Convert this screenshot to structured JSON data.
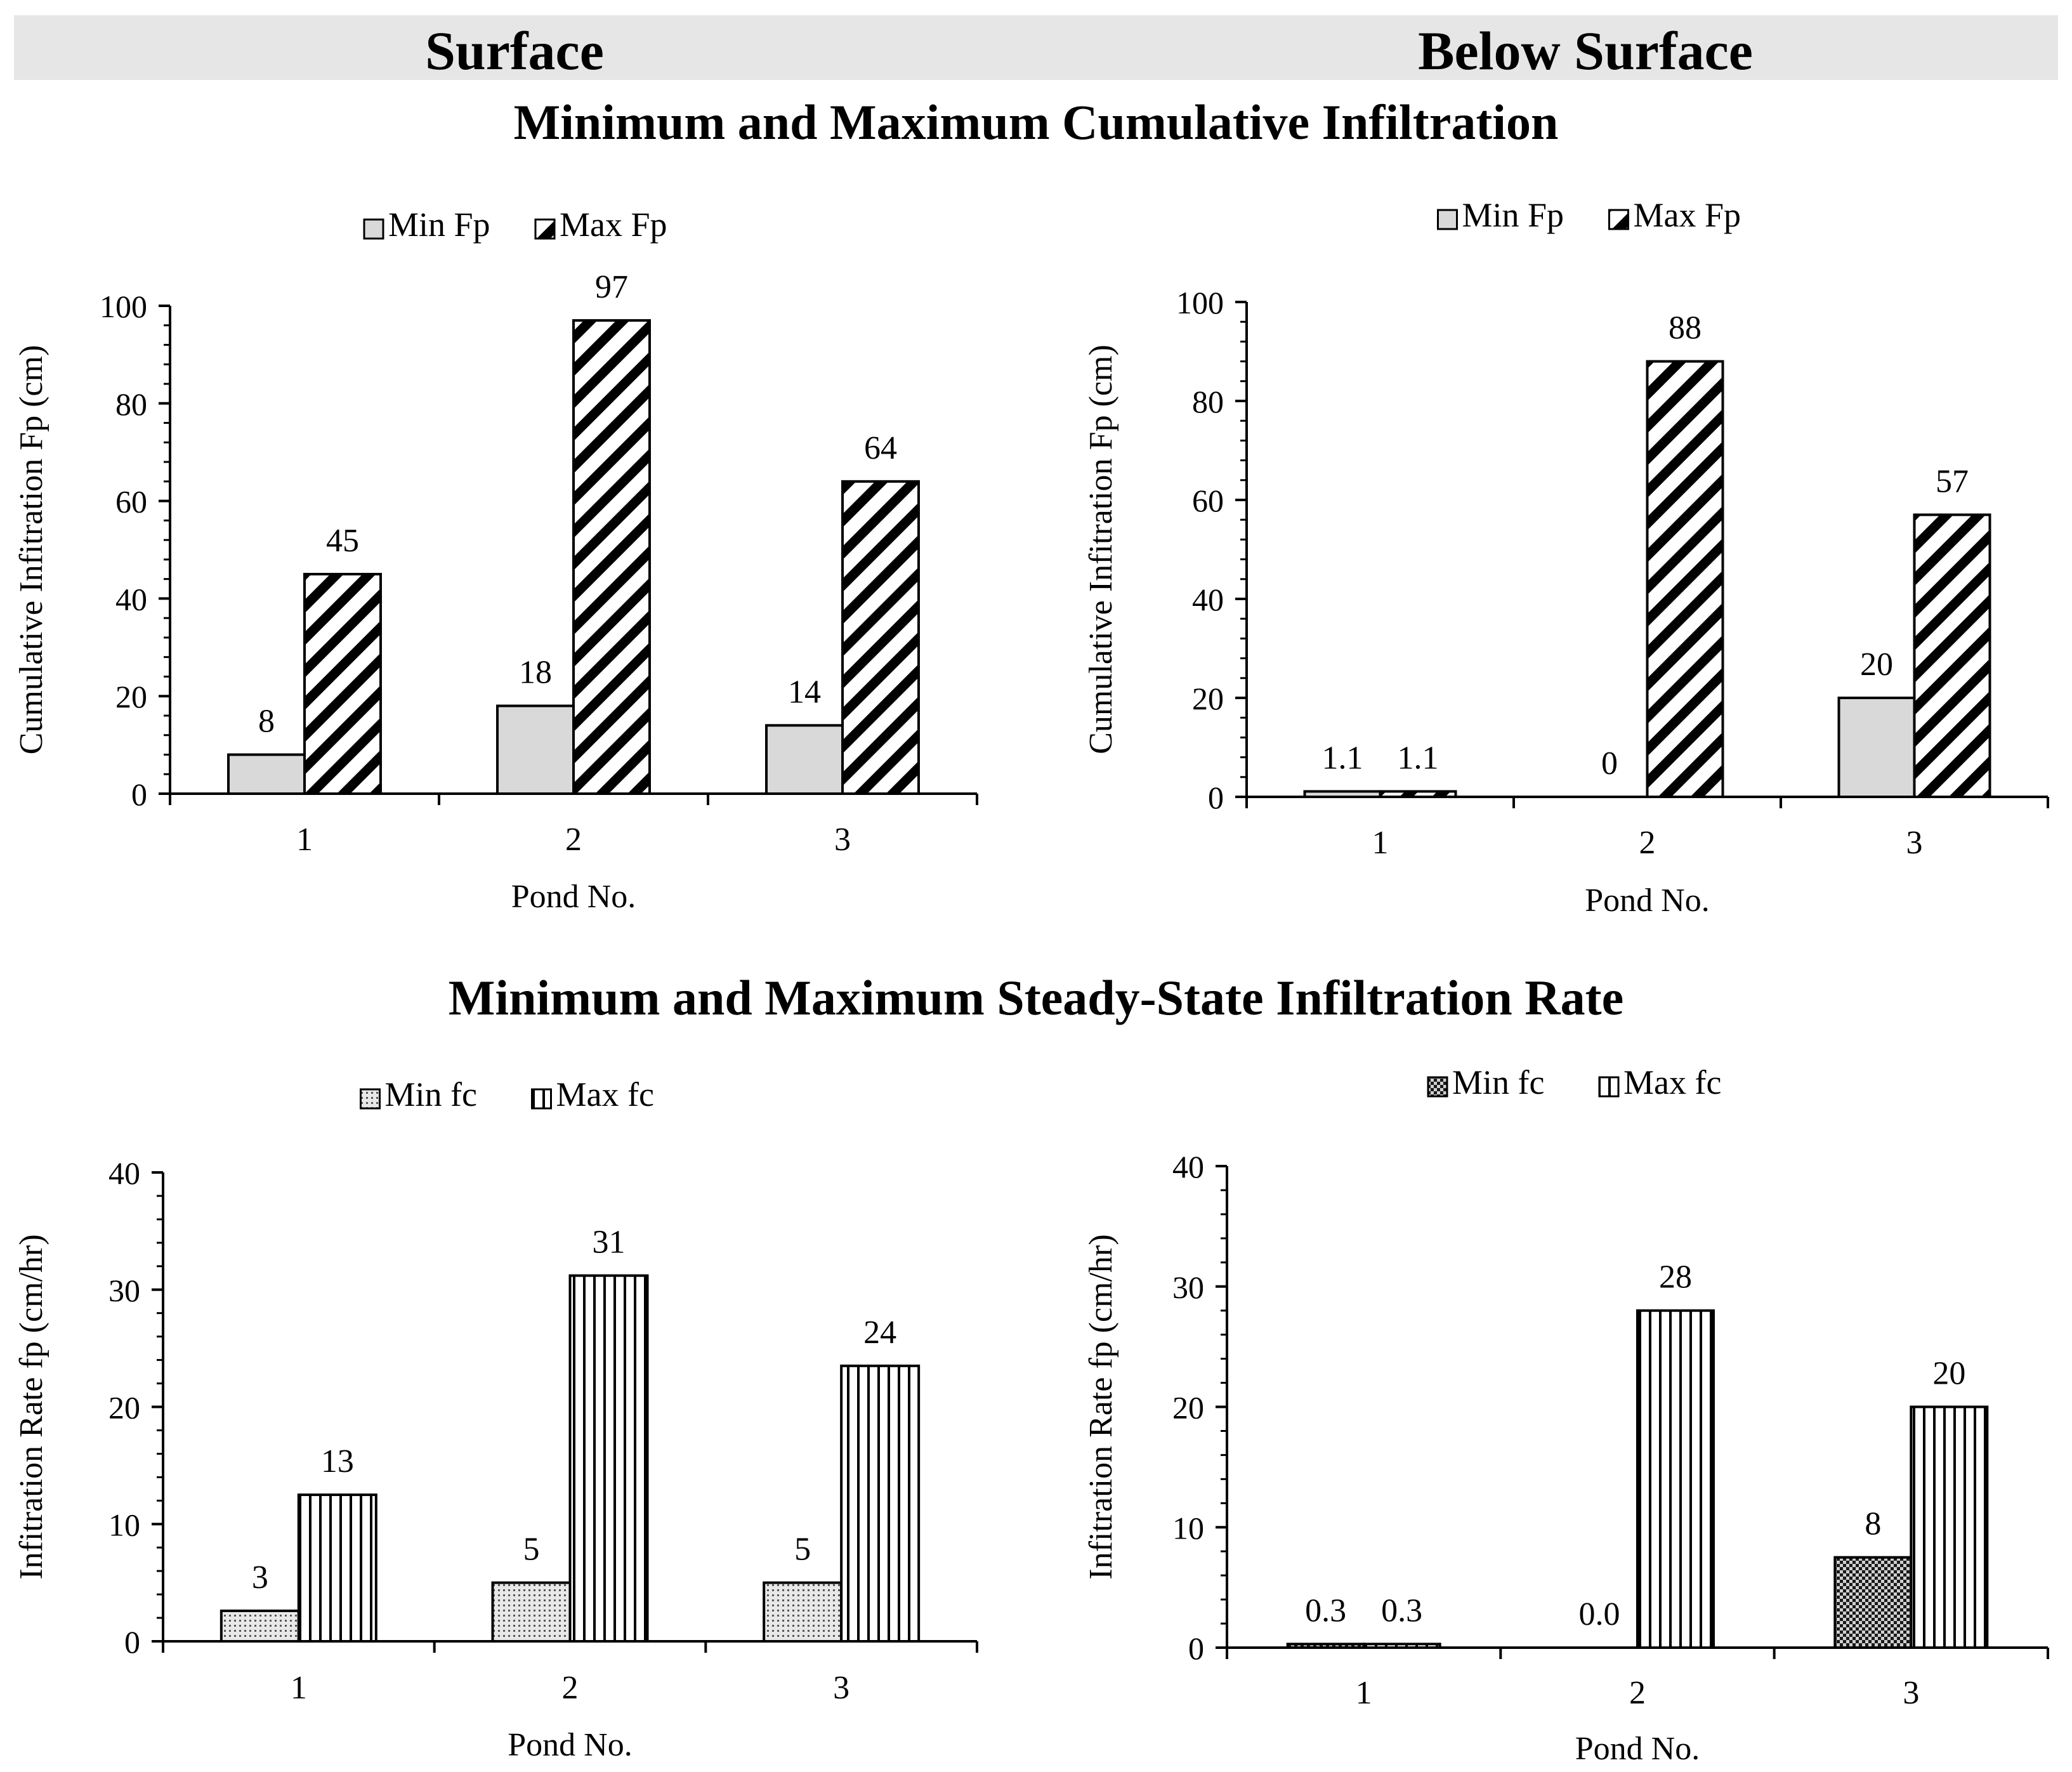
{
  "header": {
    "left": "Surface",
    "right": "Below Surface"
  },
  "sections": {
    "top_title": "Minimum and Maximum Cumulative Infiltration",
    "bottom_title": "Minimum and Maximum Steady-State Infiltration Rate"
  },
  "colors": {
    "header_band": "#e6e6e6",
    "min_fill": "#d9d9d9",
    "bar_stroke": "#000000",
    "hatch": "#000000"
  },
  "chart_data": [
    {
      "id": "surface-cumulative",
      "type": "bar",
      "panel": "Surface",
      "categories": [
        "1",
        "2",
        "3"
      ],
      "series": [
        {
          "name": "Min Fp",
          "pattern": "solid-gray",
          "values": [
            8,
            18,
            14
          ],
          "labels": [
            "8",
            "18",
            "14"
          ]
        },
        {
          "name": "Max Fp",
          "pattern": "diagonal",
          "values": [
            45,
            97,
            64
          ],
          "labels": [
            "45",
            "97",
            "64"
          ]
        }
      ],
      "xlabel": "Pond No.",
      "ylabel": "Cumulative Infitration Fp (cm)",
      "ylim": [
        0,
        100
      ],
      "yticks": [
        0,
        20,
        40,
        60,
        80,
        100
      ],
      "legend": "top-center",
      "grid": false
    },
    {
      "id": "below-cumulative",
      "type": "bar",
      "panel": "Below Surface",
      "categories": [
        "1",
        "2",
        "3"
      ],
      "series": [
        {
          "name": "Min Fp",
          "pattern": "solid-gray",
          "values": [
            1.1,
            0,
            20
          ],
          "labels": [
            "1.1",
            "0",
            "20"
          ]
        },
        {
          "name": "Max Fp",
          "pattern": "diagonal",
          "values": [
            1.1,
            88,
            57
          ],
          "labels": [
            "1.1",
            "88",
            "57"
          ]
        }
      ],
      "xlabel": "Pond No.",
      "ylabel": "Cumulative Infitration Fp (cm)",
      "ylim": [
        0,
        100
      ],
      "yticks": [
        0,
        20,
        40,
        60,
        80,
        100
      ],
      "legend": "top-center",
      "grid": false
    },
    {
      "id": "surface-rate",
      "type": "bar",
      "panel": "Surface",
      "categories": [
        "1",
        "2",
        "3"
      ],
      "series": [
        {
          "name": "Min fc",
          "pattern": "dots",
          "values": [
            2.6,
            5,
            5
          ],
          "labels": [
            "3",
            "5",
            "5"
          ]
        },
        {
          "name": "Max fc",
          "pattern": "vertical",
          "values": [
            12.5,
            31.2,
            23.5
          ],
          "labels": [
            "13",
            "31",
            "24"
          ]
        }
      ],
      "xlabel": "Pond No.",
      "ylabel": "Infitration Rate fp (cm/hr)",
      "ylim": [
        0,
        40
      ],
      "yticks": [
        0,
        10,
        20,
        30,
        40
      ],
      "legend": "top-center",
      "grid": false
    },
    {
      "id": "below-rate",
      "type": "bar",
      "panel": "Below Surface",
      "categories": [
        "1",
        "2",
        "3"
      ],
      "series": [
        {
          "name": "Min fc",
          "pattern": "checker",
          "values": [
            0.3,
            0,
            7.5
          ],
          "labels": [
            "0.3",
            "0.0",
            "8"
          ]
        },
        {
          "name": "Max fc",
          "pattern": "vertical",
          "values": [
            0.3,
            28,
            20
          ],
          "labels": [
            "0.3",
            "28",
            "20"
          ]
        }
      ],
      "xlabel": "Pond No.",
      "ylabel": "Infitration Rate fp (cm/hr)",
      "ylim": [
        0,
        40
      ],
      "yticks": [
        0,
        10,
        20,
        30,
        40
      ],
      "legend": "top-center",
      "grid": false
    }
  ]
}
